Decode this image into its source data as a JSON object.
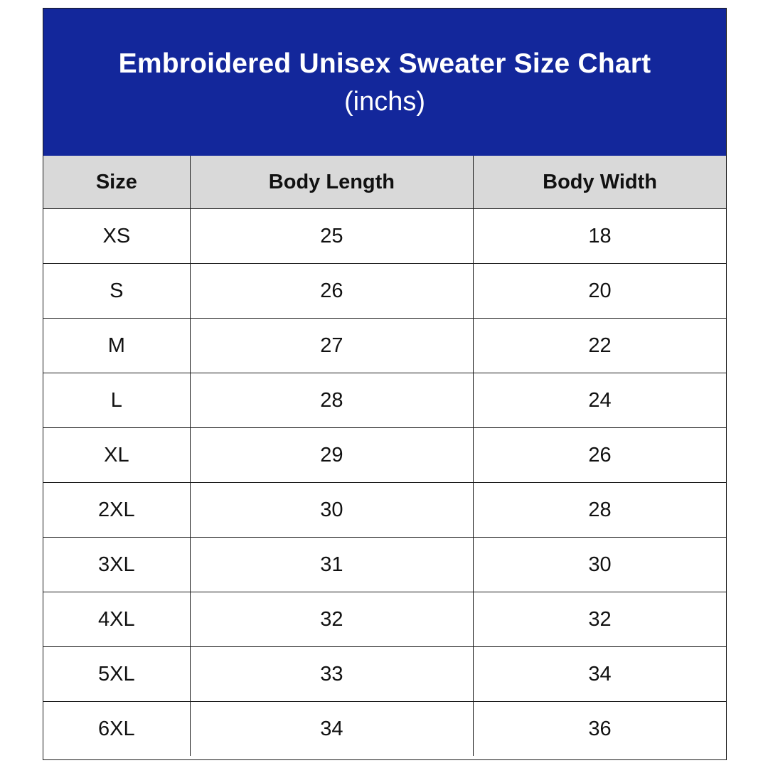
{
  "title": "Embroidered Unisex Sweater Size Chart",
  "subtitle": "(inchs)",
  "colors": {
    "banner_background": "#13279b",
    "banner_text": "#ffffff",
    "header_background": "#d9d9d9",
    "border": "#1a1a1a"
  },
  "table": {
    "headers": [
      "Size",
      "Body Length",
      "Body Width"
    ],
    "rows": [
      [
        "XS",
        "25",
        "18"
      ],
      [
        "S",
        "26",
        "20"
      ],
      [
        "M",
        "27",
        "22"
      ],
      [
        "L",
        "28",
        "24"
      ],
      [
        "XL",
        "29",
        "26"
      ],
      [
        "2XL",
        "30",
        "28"
      ],
      [
        "3XL",
        "31",
        "30"
      ],
      [
        "4XL",
        "32",
        "32"
      ],
      [
        "5XL",
        "33",
        "34"
      ],
      [
        "6XL",
        "34",
        "36"
      ]
    ]
  }
}
